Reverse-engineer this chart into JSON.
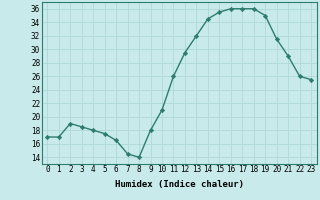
{
  "x": [
    0,
    1,
    2,
    3,
    4,
    5,
    6,
    7,
    8,
    9,
    10,
    11,
    12,
    13,
    14,
    15,
    16,
    17,
    18,
    19,
    20,
    21,
    22,
    23
  ],
  "y": [
    17,
    17,
    19,
    18.5,
    18,
    17.5,
    16.5,
    14.5,
    14,
    18,
    21,
    26,
    29.5,
    32,
    34.5,
    35.5,
    36,
    36,
    36,
    35,
    31.5,
    29,
    26,
    25.5
  ],
  "xlabel": "Humidex (Indice chaleur)",
  "xlim": [
    -0.5,
    23.5
  ],
  "ylim": [
    13,
    37
  ],
  "yticks": [
    14,
    16,
    18,
    20,
    22,
    24,
    26,
    28,
    30,
    32,
    34,
    36
  ],
  "xticks": [
    0,
    1,
    2,
    3,
    4,
    5,
    6,
    7,
    8,
    9,
    10,
    11,
    12,
    13,
    14,
    15,
    16,
    17,
    18,
    19,
    20,
    21,
    22,
    23
  ],
  "line_color": "#2d7d6e",
  "marker_color": "#2d7d6e",
  "bg_color": "#c8eaea",
  "grid_color": "#b0d8d8",
  "label_fontsize": 6.5,
  "tick_fontsize": 5.5
}
